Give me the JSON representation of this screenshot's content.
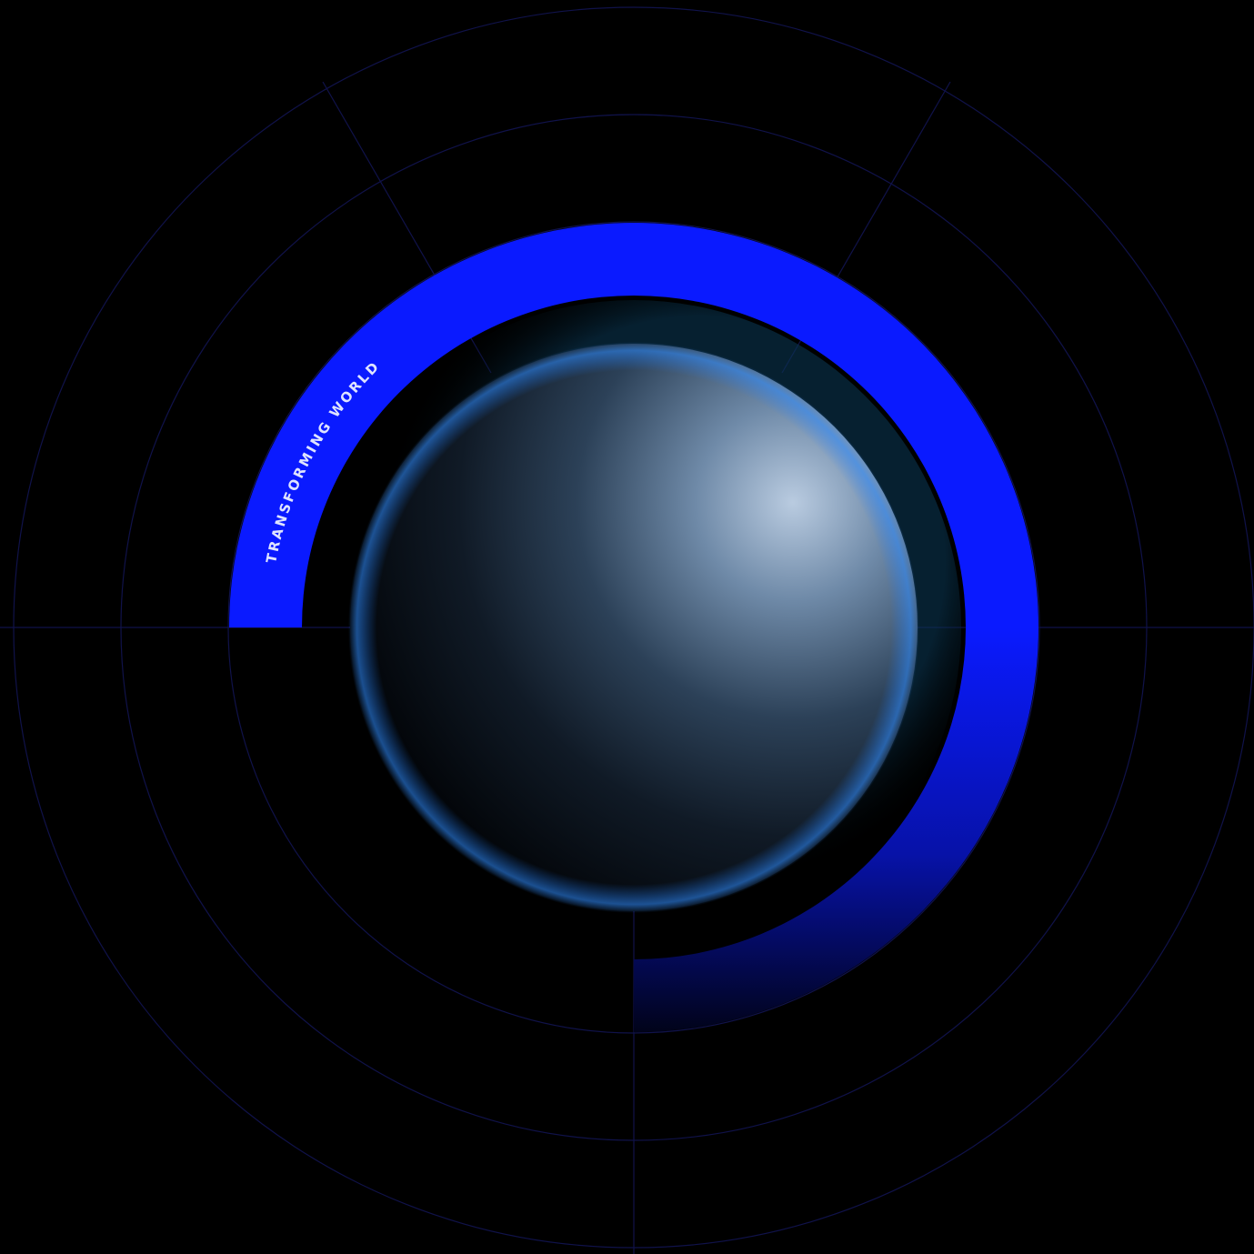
{
  "label": "TRANSFORMING WORLD"
}
